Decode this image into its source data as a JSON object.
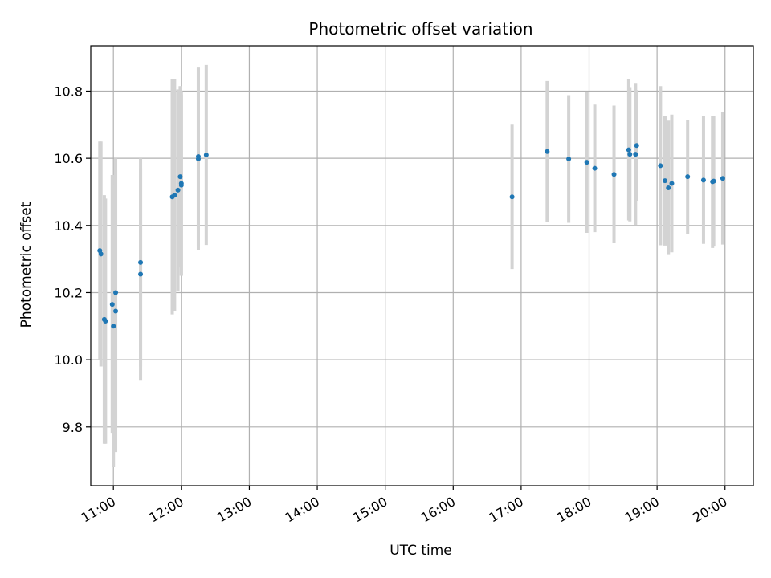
{
  "chart_data": {
    "type": "scatter",
    "title": "Photometric offset variation",
    "xlabel": "UTC time",
    "ylabel": "Photometric offset",
    "x_ticks": [
      "11:00",
      "12:00",
      "13:00",
      "14:00",
      "15:00",
      "16:00",
      "17:00",
      "18:00",
      "19:00",
      "20:00"
    ],
    "y_ticks": [
      9.8,
      10.0,
      10.2,
      10.4,
      10.6,
      10.8
    ],
    "xlim": [
      "10:40",
      "20:25"
    ],
    "ylim": [
      9.625,
      10.935
    ],
    "grid": true,
    "colors": {
      "point": "#1f77b4",
      "errorbar": "#d3d3d3",
      "grid": "#b0b0b0"
    },
    "points": [
      {
        "x": "10:48",
        "y": 10.325,
        "err": 0.325
      },
      {
        "x": "10:49",
        "y": 10.315,
        "err": 0.335
      },
      {
        "x": "10:52",
        "y": 10.12,
        "err": 0.37
      },
      {
        "x": "10:53",
        "y": 10.115,
        "err": 0.365
      },
      {
        "x": "10:59",
        "y": 10.165,
        "err": 0.385
      },
      {
        "x": "11:00",
        "y": 10.1,
        "err": 0.42
      },
      {
        "x": "11:02",
        "y": 10.145,
        "err": 0.42
      },
      {
        "x": "11:02",
        "y": 10.2,
        "err": 0.4
      },
      {
        "x": "11:24",
        "y": 10.29,
        "err": 0.31
      },
      {
        "x": "11:24",
        "y": 10.255,
        "err": 0.315
      },
      {
        "x": "11:52",
        "y": 10.485,
        "err": 0.35
      },
      {
        "x": "11:54",
        "y": 10.49,
        "err": 0.345
      },
      {
        "x": "11:57",
        "y": 10.505,
        "err": 0.3
      },
      {
        "x": "11:59",
        "y": 10.545,
        "err": 0.27
      },
      {
        "x": "12:00",
        "y": 10.52,
        "err": 0.27
      },
      {
        "x": "12:00",
        "y": 10.525,
        "err": 0.275
      },
      {
        "x": "12:15",
        "y": 10.605,
        "err": 0.265
      },
      {
        "x": "12:15",
        "y": 10.598,
        "err": 0.272
      },
      {
        "x": "12:22",
        "y": 10.61,
        "err": 0.268
      },
      {
        "x": "16:52",
        "y": 10.485,
        "err": 0.215
      },
      {
        "x": "17:23",
        "y": 10.62,
        "err": 0.21
      },
      {
        "x": "17:42",
        "y": 10.598,
        "err": 0.19
      },
      {
        "x": "17:58",
        "y": 10.588,
        "err": 0.21
      },
      {
        "x": "18:05",
        "y": 10.57,
        "err": 0.19
      },
      {
        "x": "18:22",
        "y": 10.552,
        "err": 0.205
      },
      {
        "x": "18:35",
        "y": 10.625,
        "err": 0.21
      },
      {
        "x": "18:36",
        "y": 10.612,
        "err": 0.2
      },
      {
        "x": "18:41",
        "y": 10.612,
        "err": 0.21
      },
      {
        "x": "18:42",
        "y": 10.638,
        "err": 0.165
      },
      {
        "x": "19:03",
        "y": 10.578,
        "err": 0.237
      },
      {
        "x": "19:07",
        "y": 10.533,
        "err": 0.193
      },
      {
        "x": "19:10",
        "y": 10.512,
        "err": 0.2
      },
      {
        "x": "19:13",
        "y": 10.525,
        "err": 0.205
      },
      {
        "x": "19:27",
        "y": 10.545,
        "err": 0.17
      },
      {
        "x": "19:41",
        "y": 10.535,
        "err": 0.19
      },
      {
        "x": "19:49",
        "y": 10.53,
        "err": 0.197
      },
      {
        "x": "19:50",
        "y": 10.532,
        "err": 0.195
      },
      {
        "x": "19:58",
        "y": 10.54,
        "err": 0.197
      }
    ]
  }
}
